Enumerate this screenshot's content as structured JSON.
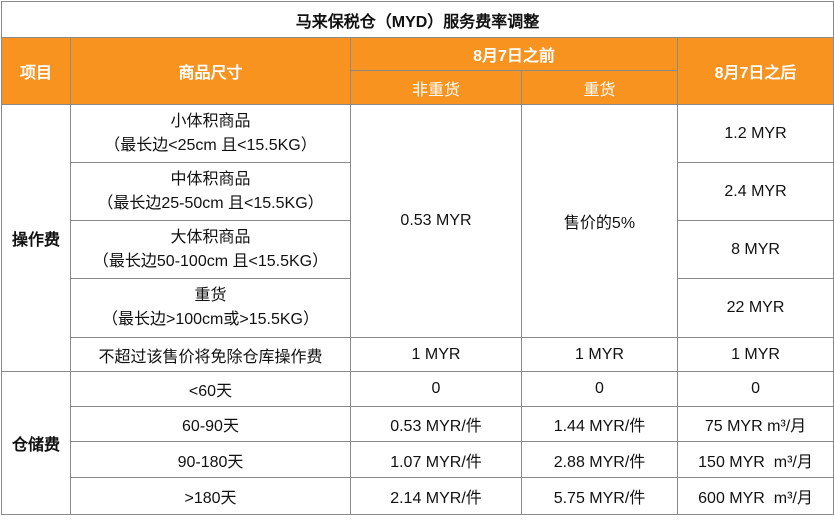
{
  "title": "马来保税仓（MYD）服务费率调整",
  "header": {
    "item": "项目",
    "size": "商品尺寸",
    "before": "8月7日之前",
    "non_heavy": "非重货",
    "heavy": "重货",
    "after": "8月7日之后"
  },
  "operation": {
    "label": "操作费",
    "before_non_heavy": "0.53 MYR",
    "before_heavy": "售价的5%",
    "rows": [
      {
        "size": [
          "小体积商品",
          "（最长边<25cm 且<15.5KG）"
        ],
        "after": "1.2 MYR"
      },
      {
        "size": [
          "中体积商品",
          "（最长边25-50cm 且<15.5KG）"
        ],
        "after": "2.4 MYR"
      },
      {
        "size": [
          "大体积商品",
          "（最长边50-100cm 且<15.5KG）"
        ],
        "after": "8 MYR"
      },
      {
        "size": [
          "重货",
          "（最长边>100cm或>15.5KG）"
        ],
        "after": "22 MYR"
      }
    ],
    "threshold": {
      "size": "不超过该售价将免除仓库操作费",
      "non_heavy": "1 MYR",
      "heavy": "1 MYR",
      "after": "1 MYR"
    }
  },
  "storage": {
    "label": "仓储费",
    "rows": [
      {
        "period": "<60天",
        "non_heavy": "0",
        "heavy": "0",
        "after": "0"
      },
      {
        "period": "60-90天",
        "non_heavy": "0.53 MYR/件",
        "heavy": "1.44 MYR/件",
        "after": "75 MYR m³/月"
      },
      {
        "period": "90-180天",
        "non_heavy": "1.07 MYR/件",
        "heavy": "2.88 MYR/件",
        "after": "150 MYR  m³/月"
      },
      {
        "period": ">180天",
        "non_heavy": "2.14 MYR/件",
        "heavy": "5.75 MYR/件",
        "after": "600 MYR  m³/月"
      }
    ]
  }
}
